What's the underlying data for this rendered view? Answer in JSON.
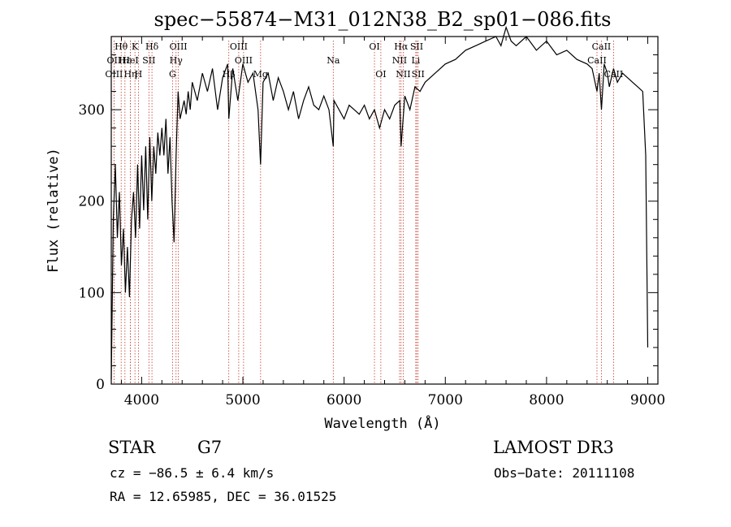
{
  "chart_data": {
    "type": "line",
    "title": "spec−55874−M31_012N38_B2_sp01−086.fits",
    "xlabel": "Wavelength (Å)",
    "ylabel": "Flux (relative)",
    "xlim": [
      3700,
      9100
    ],
    "ylim": [
      0,
      380
    ],
    "x_ticks": [
      {
        "value": 4000,
        "label": "4000"
      },
      {
        "value": 5000,
        "label": "5000"
      },
      {
        "value": 6000,
        "label": "6000"
      },
      {
        "value": 7000,
        "label": "7000"
      },
      {
        "value": 8000,
        "label": "8000"
      },
      {
        "value": 9000,
        "label": "9000"
      }
    ],
    "y_ticks": [
      {
        "value": 0,
        "label": "0"
      },
      {
        "value": 100,
        "label": "100"
      },
      {
        "value": 200,
        "label": "200"
      },
      {
        "value": 300,
        "label": "300"
      }
    ],
    "series": [
      {
        "name": "spectrum",
        "x": [
          3700,
          3720,
          3740,
          3760,
          3780,
          3800,
          3820,
          3840,
          3860,
          3880,
          3900,
          3920,
          3940,
          3960,
          3980,
          4000,
          4020,
          4040,
          4060,
          4080,
          4100,
          4120,
          4140,
          4160,
          4180,
          4200,
          4220,
          4240,
          4260,
          4280,
          4300,
          4320,
          4340,
          4360,
          4380,
          4400,
          4420,
          4440,
          4460,
          4480,
          4500,
          4550,
          4600,
          4650,
          4700,
          4750,
          4800,
          4850,
          4861,
          4900,
          4950,
          5000,
          5050,
          5100,
          5150,
          5175,
          5200,
          5250,
          5300,
          5350,
          5400,
          5450,
          5500,
          5550,
          5600,
          5650,
          5700,
          5750,
          5800,
          5850,
          5893,
          5900,
          5950,
          6000,
          6050,
          6100,
          6150,
          6200,
          6250,
          6300,
          6350,
          6400,
          6450,
          6500,
          6550,
          6563,
          6600,
          6650,
          6700,
          6750,
          6800,
          6900,
          7000,
          7100,
          7200,
          7300,
          7400,
          7500,
          7550,
          7600,
          7650,
          7700,
          7800,
          7900,
          8000,
          8100,
          8200,
          8300,
          8400,
          8450,
          8498,
          8520,
          8542,
          8570,
          8600,
          8620,
          8662,
          8700,
          8750,
          8800,
          8850,
          8900,
          8950,
          8980,
          9000
        ],
        "values": [
          5,
          180,
          240,
          160,
          210,
          130,
          170,
          100,
          150,
          95,
          180,
          210,
          160,
          240,
          170,
          250,
          190,
          260,
          180,
          270,
          200,
          260,
          230,
          275,
          250,
          280,
          250,
          290,
          230,
          270,
          200,
          155,
          250,
          320,
          290,
          300,
          310,
          295,
          320,
          300,
          330,
          310,
          340,
          320,
          345,
          300,
          335,
          350,
          290,
          345,
          310,
          350,
          330,
          340,
          300,
          240,
          330,
          340,
          310,
          335,
          320,
          300,
          320,
          290,
          310,
          325,
          305,
          300,
          315,
          300,
          260,
          310,
          300,
          290,
          305,
          300,
          295,
          305,
          290,
          300,
          280,
          300,
          290,
          305,
          310,
          260,
          315,
          300,
          325,
          320,
          330,
          340,
          350,
          355,
          365,
          370,
          375,
          380,
          370,
          390,
          375,
          370,
          380,
          365,
          375,
          360,
          365,
          355,
          350,
          345,
          320,
          340,
          300,
          350,
          340,
          325,
          345,
          330,
          340,
          335,
          330,
          325,
          320,
          250,
          40
        ]
      }
    ],
    "spectral_lines": [
      {
        "label": "Hθ",
        "wavelength": 3798,
        "row": 1
      },
      {
        "label": "K",
        "wavelength": 3934,
        "row": 1
      },
      {
        "label": "Hδ",
        "wavelength": 4102,
        "row": 1
      },
      {
        "label": "OIII",
        "wavelength": 4363,
        "row": 1
      },
      {
        "label": "OIII",
        "wavelength": 4959,
        "row": 1
      },
      {
        "label": "OI",
        "wavelength": 6300,
        "row": 1
      },
      {
        "label": "Hα",
        "wavelength": 6563,
        "row": 1
      },
      {
        "label": "SII",
        "wavelength": 6717,
        "row": 1
      },
      {
        "label": "CaII",
        "wavelength": 8542,
        "row": 1
      },
      {
        "label": "OII",
        "wavelength": 3727,
        "row": 2
      },
      {
        "label": "Hε",
        "wavelength": 3835,
        "row": 2
      },
      {
        "label": "HeI",
        "wavelength": 3889,
        "row": 2
      },
      {
        "label": "SII",
        "wavelength": 4072,
        "row": 2
      },
      {
        "label": "Hγ",
        "wavelength": 4340,
        "row": 2
      },
      {
        "label": "OIII",
        "wavelength": 5007,
        "row": 2
      },
      {
        "label": "Na",
        "wavelength": 5893,
        "row": 2
      },
      {
        "label": "NII",
        "wavelength": 6548,
        "row": 2
      },
      {
        "label": "Li",
        "wavelength": 6708,
        "row": 2
      },
      {
        "label": "CaII",
        "wavelength": 8498,
        "row": 2
      },
      {
        "label": "OIII",
        "wavelength": 3727,
        "row": 3
      },
      {
        "label": "Hη",
        "wavelength": 3889,
        "row": 3
      },
      {
        "label": "H",
        "wavelength": 3968,
        "row": 3
      },
      {
        "label": "G",
        "wavelength": 4305,
        "row": 3
      },
      {
        "label": "Hβ",
        "wavelength": 4861,
        "row": 3
      },
      {
        "label": "Mg",
        "wavelength": 5175,
        "row": 3
      },
      {
        "label": "OI",
        "wavelength": 6363,
        "row": 3
      },
      {
        "label": "NII",
        "wavelength": 6584,
        "row": 3
      },
      {
        "label": "SII",
        "wavelength": 6731,
        "row": 3
      },
      {
        "label": "CaII",
        "wavelength": 8662,
        "row": 3
      }
    ]
  },
  "info": {
    "object_class": "STAR",
    "subclass": "G7",
    "survey": "LAMOST DR3",
    "redshift_line": "cz = −86.5 ± 6.4 km/s",
    "obs_date": "Obs−Date: 20111108",
    "coordinates": "RA =  12.65985, DEC =  36.01525"
  }
}
